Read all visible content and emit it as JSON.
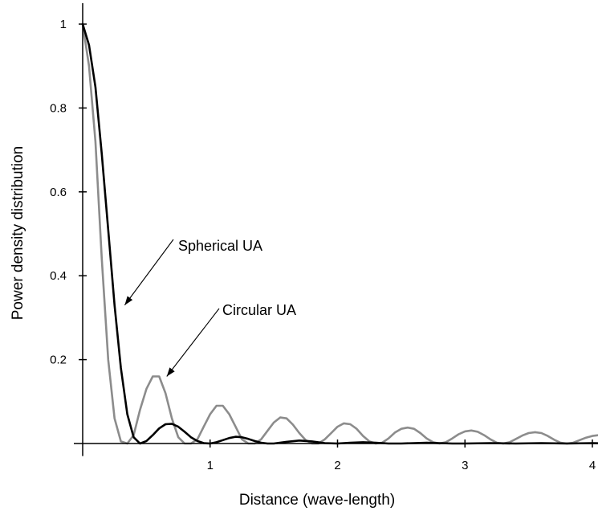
{
  "chart_data": {
    "type": "line",
    "title": "",
    "xlabel": "Distance (wave-length)",
    "ylabel": "Power density distribution",
    "xlim": [
      0,
      4.1
    ],
    "ylim": [
      -0.03,
      1.05
    ],
    "x_ticks": [
      1,
      2,
      3,
      4
    ],
    "x_tick_labels": [
      "1",
      "2",
      "3",
      "4"
    ],
    "y_ticks": [
      0.2,
      0.4,
      0.6,
      0.8,
      1
    ],
    "y_tick_labels": [
      "0.2",
      "0.4",
      "0.6",
      "0.8",
      "1"
    ],
    "grid": false,
    "legend": "none",
    "series": [
      {
        "color": "#000000",
        "x": [
          0,
          0.05,
          0.1,
          0.15,
          0.2,
          0.25,
          0.3,
          0.35,
          0.4,
          0.45,
          0.5,
          0.55,
          0.6,
          0.65,
          0.7,
          0.75,
          0.8,
          0.85,
          0.9,
          0.95,
          1.0,
          1.05,
          1.1,
          1.15,
          1.2,
          1.25,
          1.3,
          1.35,
          1.4,
          1.45,
          1.5,
          1.6,
          1.7,
          1.8,
          1.9,
          2.0,
          2.1,
          2.2,
          2.3,
          2.4,
          2.5,
          2.6,
          2.7,
          2.8,
          2.9,
          3.0,
          3.2,
          3.4,
          3.6,
          3.8,
          4.0,
          4.1
        ],
        "y": [
          1.0,
          0.95,
          0.85,
          0.69,
          0.51,
          0.33,
          0.18,
          0.07,
          0.015,
          0.0,
          0.006,
          0.02,
          0.036,
          0.046,
          0.047,
          0.04,
          0.028,
          0.015,
          0.006,
          0.001,
          0.0,
          0.003,
          0.008,
          0.013,
          0.016,
          0.015,
          0.011,
          0.006,
          0.002,
          0.0,
          0.0,
          0.004,
          0.007,
          0.005,
          0.001,
          0.0,
          0.002,
          0.003,
          0.002,
          0.0,
          0.0,
          0.001,
          0.002,
          0.001,
          0.0,
          0.0,
          0.001,
          0.0,
          0.001,
          0.0,
          0.001,
          0.0
        ]
      },
      {
        "color": "#8c8c8c",
        "x": [
          0,
          0.05,
          0.1,
          0.15,
          0.2,
          0.25,
          0.3,
          0.35,
          0.4,
          0.45,
          0.5,
          0.55,
          0.6,
          0.65,
          0.7,
          0.75,
          0.8,
          0.85,
          0.9,
          0.95,
          1.0,
          1.05,
          1.1,
          1.15,
          1.2,
          1.25,
          1.3,
          1.35,
          1.4,
          1.45,
          1.5,
          1.55,
          1.6,
          1.65,
          1.7,
          1.75,
          1.8,
          1.85,
          1.9,
          1.95,
          2.0,
          2.05,
          2.1,
          2.15,
          2.2,
          2.25,
          2.3,
          2.35,
          2.4,
          2.45,
          2.5,
          2.55,
          2.6,
          2.65,
          2.7,
          2.75,
          2.8,
          2.85,
          2.9,
          2.95,
          3.0,
          3.05,
          3.1,
          3.15,
          3.2,
          3.25,
          3.3,
          3.35,
          3.4,
          3.45,
          3.5,
          3.55,
          3.6,
          3.65,
          3.7,
          3.75,
          3.8,
          3.85,
          3.9,
          3.95,
          4.0,
          4.05,
          4.1
        ],
        "y": [
          1.0,
          0.9,
          0.72,
          0.44,
          0.2,
          0.06,
          0.005,
          0.0,
          0.02,
          0.08,
          0.13,
          0.16,
          0.16,
          0.12,
          0.06,
          0.015,
          0.0,
          0.0,
          0.01,
          0.04,
          0.07,
          0.09,
          0.09,
          0.07,
          0.04,
          0.01,
          0.0,
          0.0,
          0.01,
          0.03,
          0.05,
          0.062,
          0.06,
          0.045,
          0.025,
          0.008,
          0.0,
          0.0,
          0.01,
          0.025,
          0.04,
          0.048,
          0.046,
          0.035,
          0.018,
          0.005,
          0.0,
          0.002,
          0.012,
          0.026,
          0.035,
          0.038,
          0.035,
          0.025,
          0.012,
          0.003,
          0.0,
          0.003,
          0.012,
          0.022,
          0.029,
          0.031,
          0.028,
          0.02,
          0.01,
          0.002,
          0.0,
          0.003,
          0.011,
          0.019,
          0.025,
          0.027,
          0.025,
          0.018,
          0.009,
          0.002,
          0.0,
          0.002,
          0.008,
          0.014,
          0.018,
          0.02,
          0.02
        ]
      }
    ],
    "annotations": [
      {
        "text": "Spherical UA",
        "arrow_to": [
          0.33,
          0.33
        ]
      },
      {
        "text": "Circular UA",
        "arrow_to": [
          0.66,
          0.16
        ]
      }
    ]
  }
}
